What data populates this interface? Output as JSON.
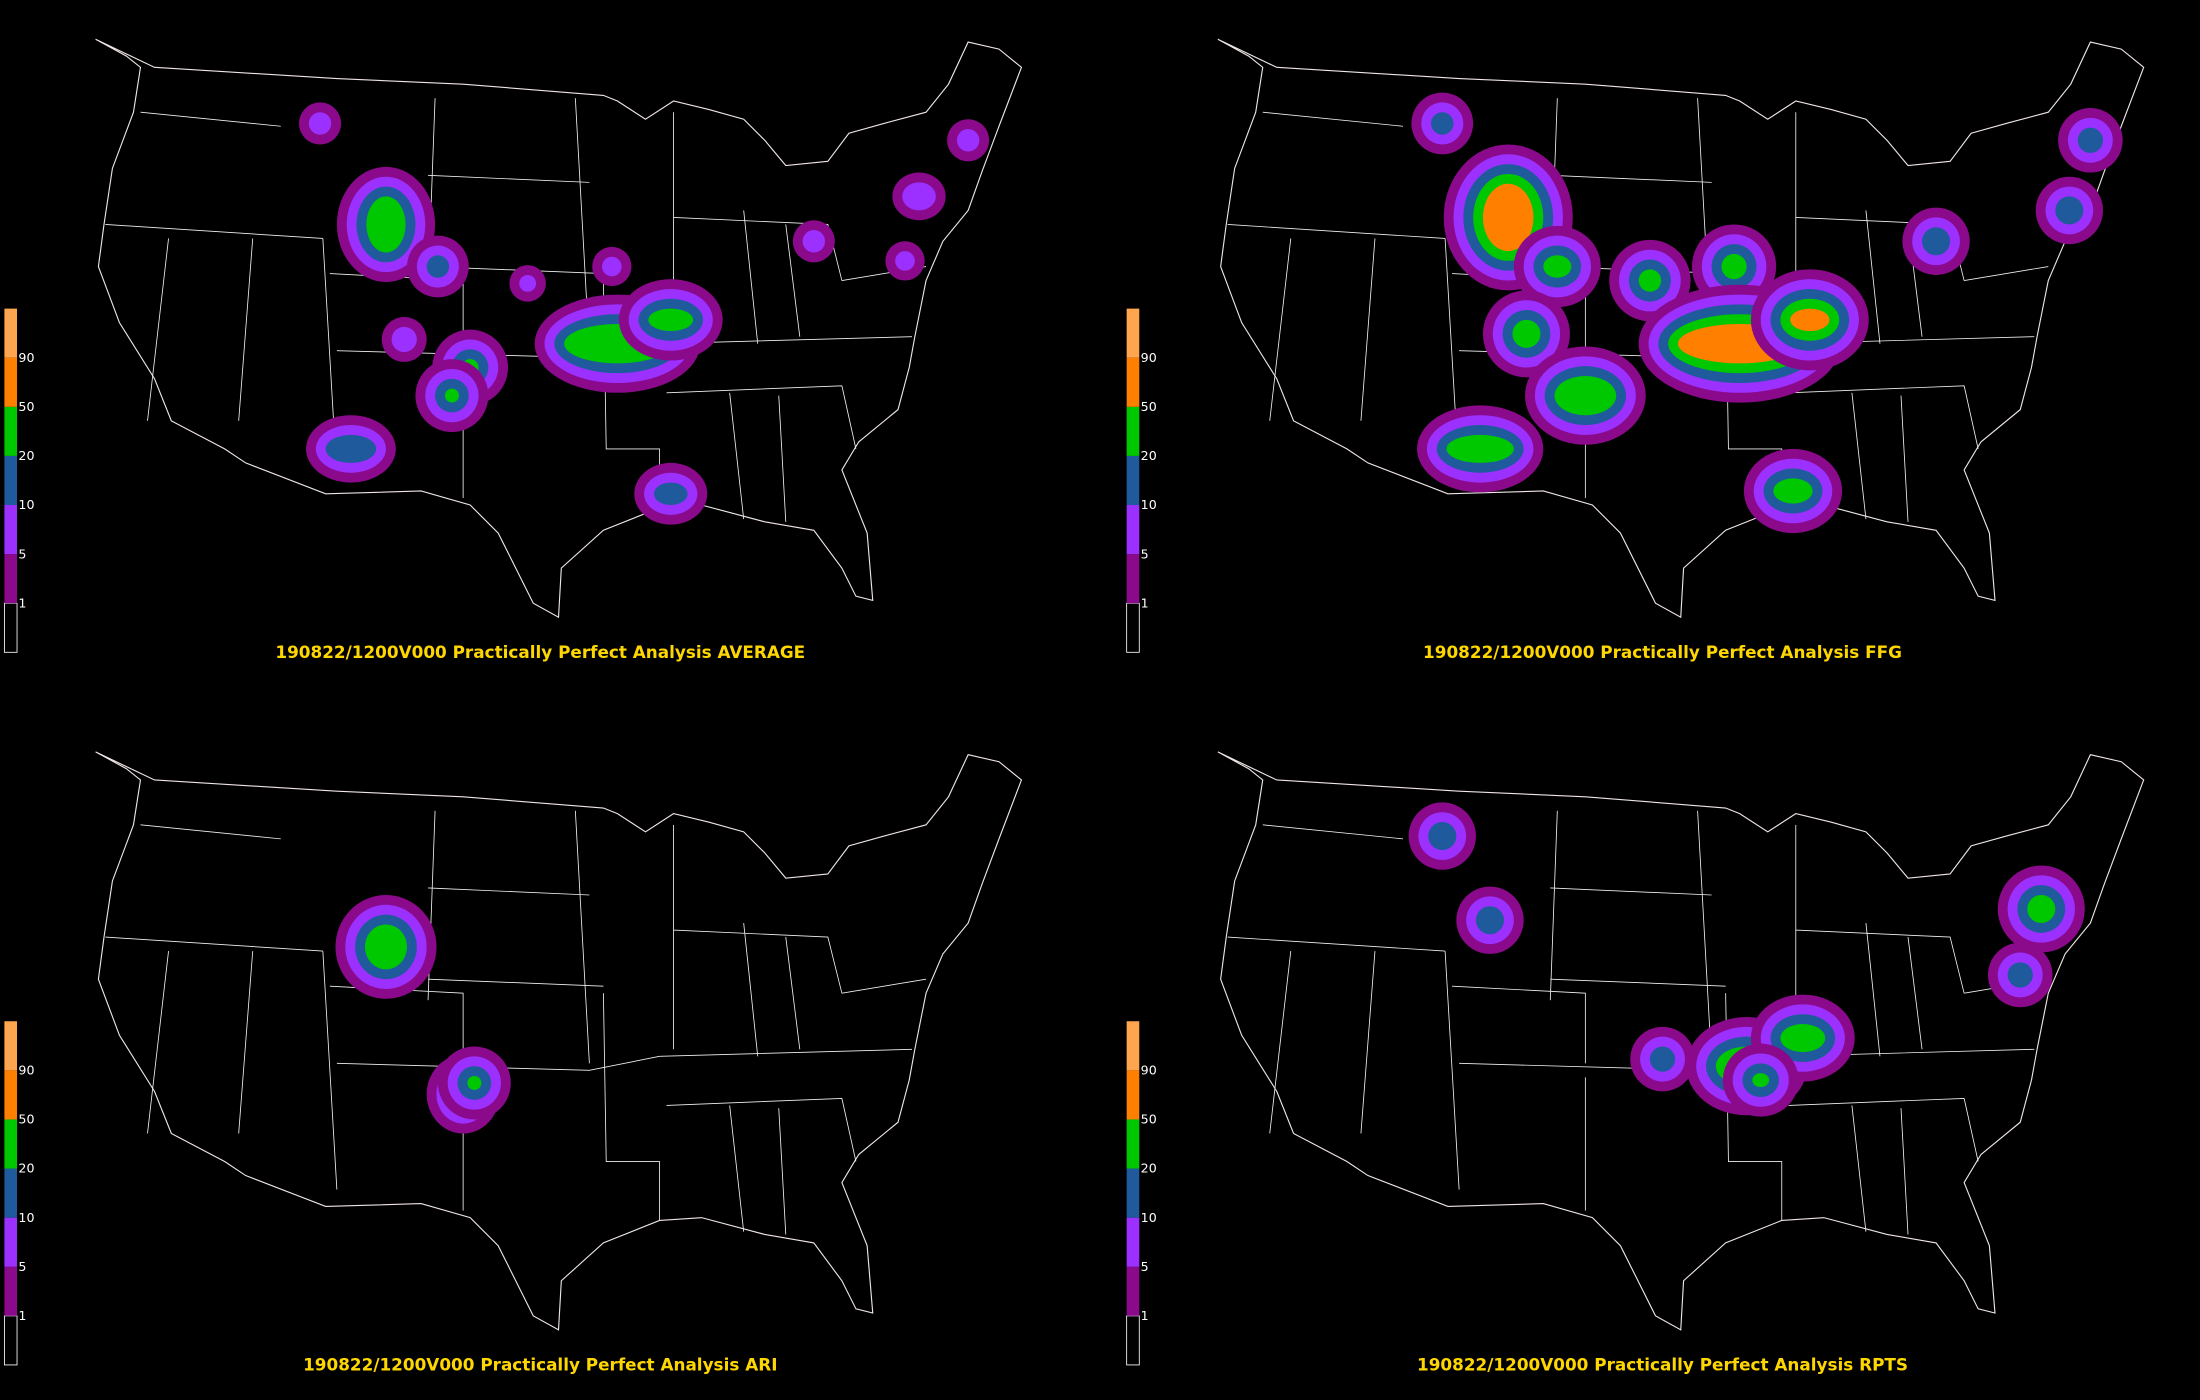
{
  "panels": [
    {
      "title": "190822/1200V000 Practically Perfect Analysis AVERAGE"
    },
    {
      "title": "190822/1200V000 Practically Perfect Analysis FFG"
    },
    {
      "title": "190822/1200V000 Practically Perfect Analysis ARI"
    },
    {
      "title": "190822/1200V000 Practically Perfect Analysis RPTS"
    }
  ],
  "legend": {
    "levels": [
      {
        "label": "1",
        "color": "#8b0a8b"
      },
      {
        "label": "5",
        "color": "#9b30ff"
      },
      {
        "label": "10",
        "color": "#1e5a9c"
      },
      {
        "label": "20",
        "color": "#00c800"
      },
      {
        "label": "50",
        "color": "#ff7f00"
      },
      {
        "label": "90",
        "color": "#ffa54f"
      }
    ]
  }
}
